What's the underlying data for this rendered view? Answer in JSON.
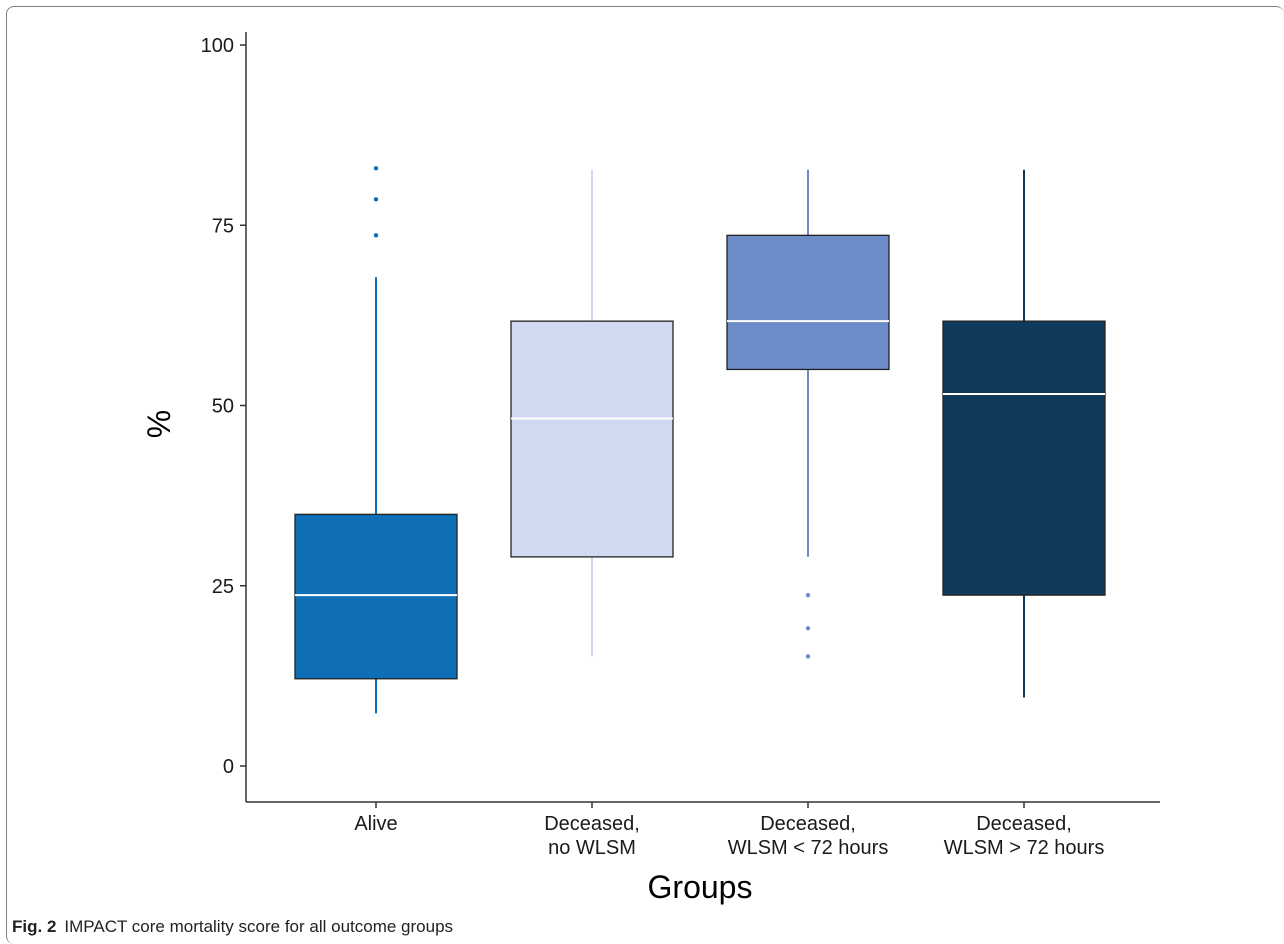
{
  "caption": {
    "label": "Fig. 2",
    "text": "IMPACT core mortality score for all outcome groups"
  },
  "chart_data": {
    "type": "box",
    "xlabel": "Groups",
    "ylabel": "%",
    "ylim": [
      -5,
      102
    ],
    "yticks": [
      "0",
      "25",
      "50",
      "75",
      "100"
    ],
    "grid": false,
    "legend": "none",
    "groups": [
      {
        "label_lines": [
          "Alive"
        ],
        "whisker_low": 7.3,
        "q1": 12.1,
        "median": 23.7,
        "q3": 34.9,
        "whisker_high": 67.8,
        "outliers": [
          73.6,
          78.6,
          82.9
        ],
        "color": "#0e6fb6",
        "median_color": "#ffffff"
      },
      {
        "label_lines": [
          "Deceased,",
          "no WLSM"
        ],
        "whisker_low": 15.2,
        "q1": 29.0,
        "median": 48.2,
        "q3": 61.7,
        "whisker_high": 82.7,
        "outliers": [],
        "color": "#d0d9ef",
        "median_color": "#ffffff"
      },
      {
        "label_lines": [
          "Deceased,",
          "WLSM < 72 hours"
        ],
        "whisker_low": 29.0,
        "q1": 55.0,
        "median": 61.7,
        "q3": 73.6,
        "whisker_high": 82.7,
        "outliers": [
          15.2,
          19.1,
          23.7
        ],
        "color": "#6b8bc9",
        "median_color": "#ffffff"
      },
      {
        "label_lines": [
          "Deceased,",
          "WLSM > 72 hours"
        ],
        "whisker_low": 9.5,
        "q1": 23.7,
        "median": 51.6,
        "q3": 61.7,
        "whisker_high": 82.7,
        "outliers": [],
        "color": "#103a5c",
        "median_color": "#ffffff"
      }
    ]
  }
}
